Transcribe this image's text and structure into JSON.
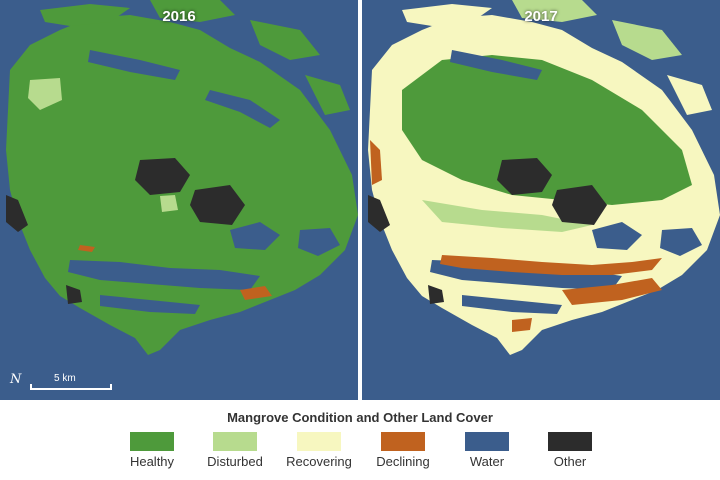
{
  "panels": [
    {
      "year": "2016"
    },
    {
      "year": "2017"
    }
  ],
  "scale_bar": {
    "label": "5 km",
    "north_icon": "north-arrow-icon"
  },
  "legend": {
    "title": "Mangrove Condition and Other Land Cover",
    "items": [
      {
        "label": "Healthy",
        "color": "#4e9a3b"
      },
      {
        "label": "Disturbed",
        "color": "#b7db8e"
      },
      {
        "label": "Recovering",
        "color": "#f7f7c0"
      },
      {
        "label": "Declining",
        "color": "#c0621f"
      },
      {
        "label": "Water",
        "color": "#3b5d8c"
      },
      {
        "label": "Other",
        "color": "#2c2c2c"
      }
    ]
  },
  "colors": {
    "water": "#3b5d8c",
    "healthy": "#4e9a3b",
    "disturbed": "#b7db8e",
    "recovering": "#f7f7c0",
    "declining": "#c0621f",
    "other": "#2c2c2c"
  }
}
